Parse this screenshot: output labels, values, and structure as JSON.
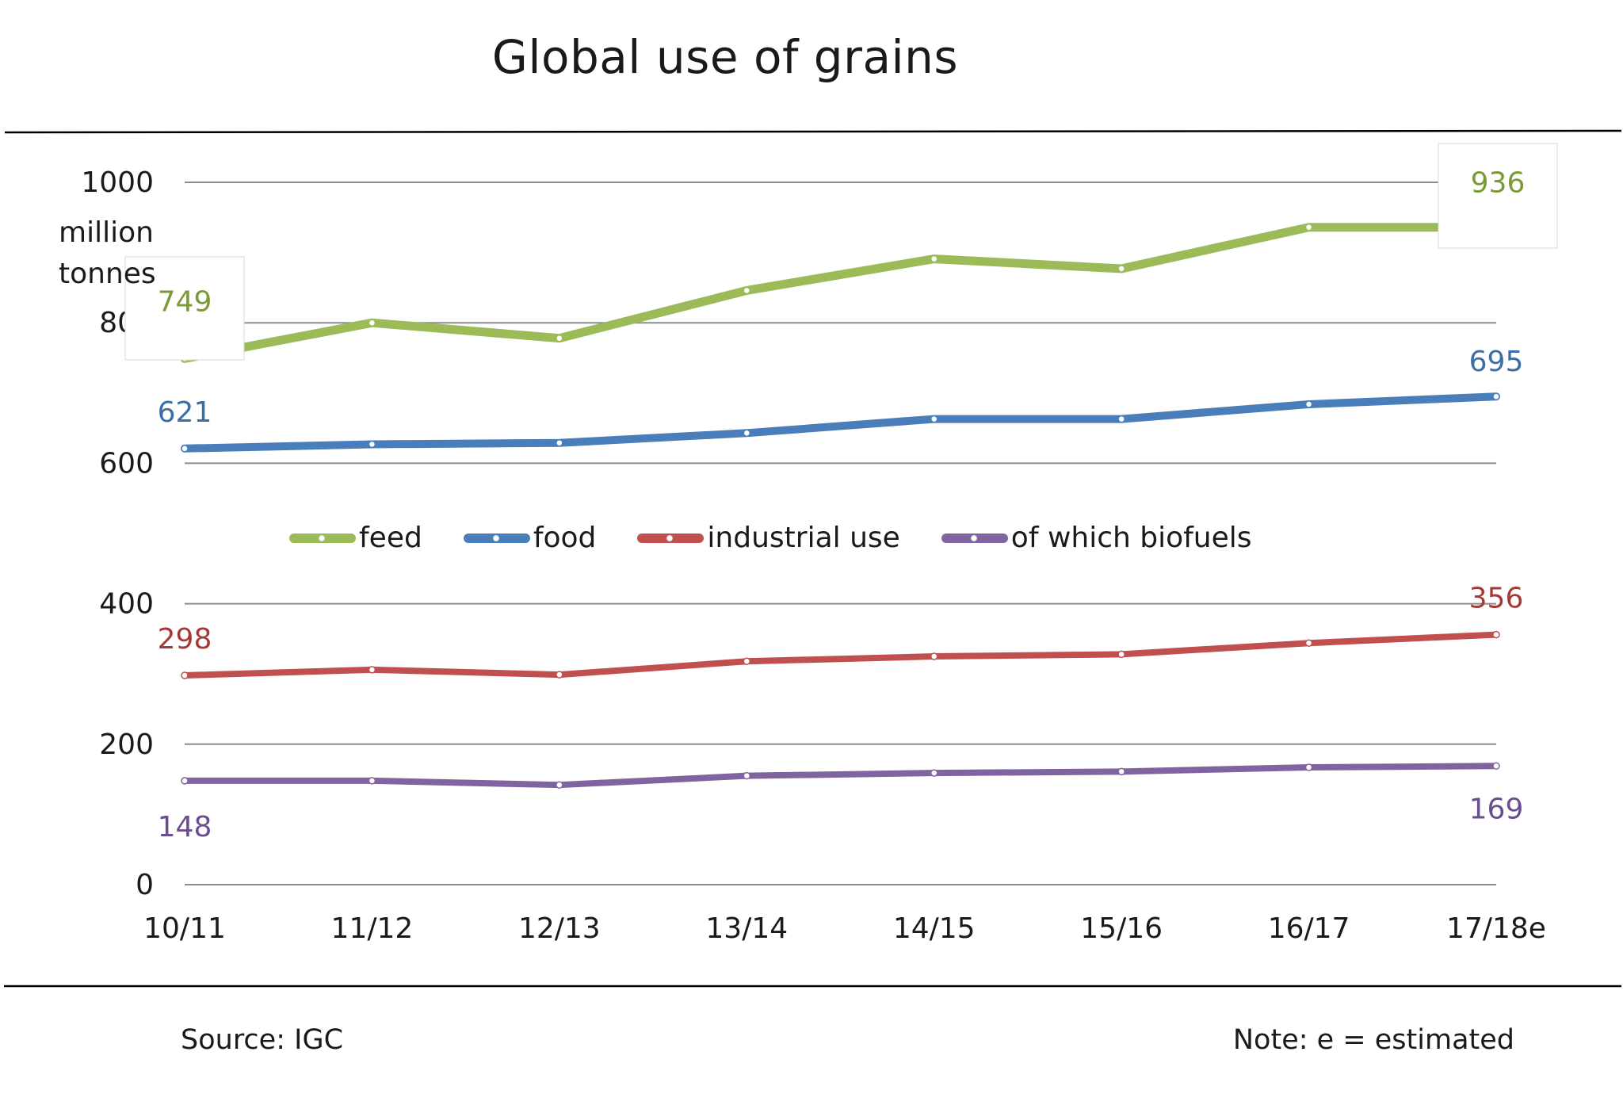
{
  "chart_data": {
    "type": "line",
    "title": "Global use of grains",
    "ylabel": "million tonnes",
    "xlabel": "",
    "categories": [
      "10/11",
      "11/12",
      "12/13",
      "13/14",
      "14/15",
      "15/16",
      "16/17",
      "17/18e"
    ],
    "yticks": [
      0,
      200,
      400,
      600,
      800,
      1000
    ],
    "ylim": [
      0,
      1000
    ],
    "grid": true,
    "legend_position": "middle",
    "series": [
      {
        "name": "feed",
        "color": "#9bbb59",
        "values": [
          749,
          800,
          778,
          846,
          891,
          877,
          936,
          936
        ],
        "labels": [
          "749",
          "936"
        ]
      },
      {
        "name": "food",
        "color": "#4a7ebb",
        "values": [
          621,
          627,
          629,
          643,
          663,
          663,
          684,
          695
        ],
        "labels": [
          "621",
          "695"
        ]
      },
      {
        "name": "industrial use",
        "color": "#c0504d",
        "values": [
          298,
          306,
          299,
          318,
          325,
          328,
          344,
          356
        ],
        "labels": [
          "298",
          "356"
        ]
      },
      {
        "name": "of which biofuels",
        "color": "#8064a2",
        "values": [
          148,
          148,
          142,
          155,
          159,
          161,
          167,
          169
        ],
        "labels": [
          "148",
          "169"
        ]
      }
    ],
    "label_colors": [
      "#7a9a35",
      "#3b6ea5",
      "#a33a37",
      "#6a4d8c"
    ]
  },
  "footer": {
    "source": "Source: IGC",
    "note": "Note: e = estimated"
  }
}
